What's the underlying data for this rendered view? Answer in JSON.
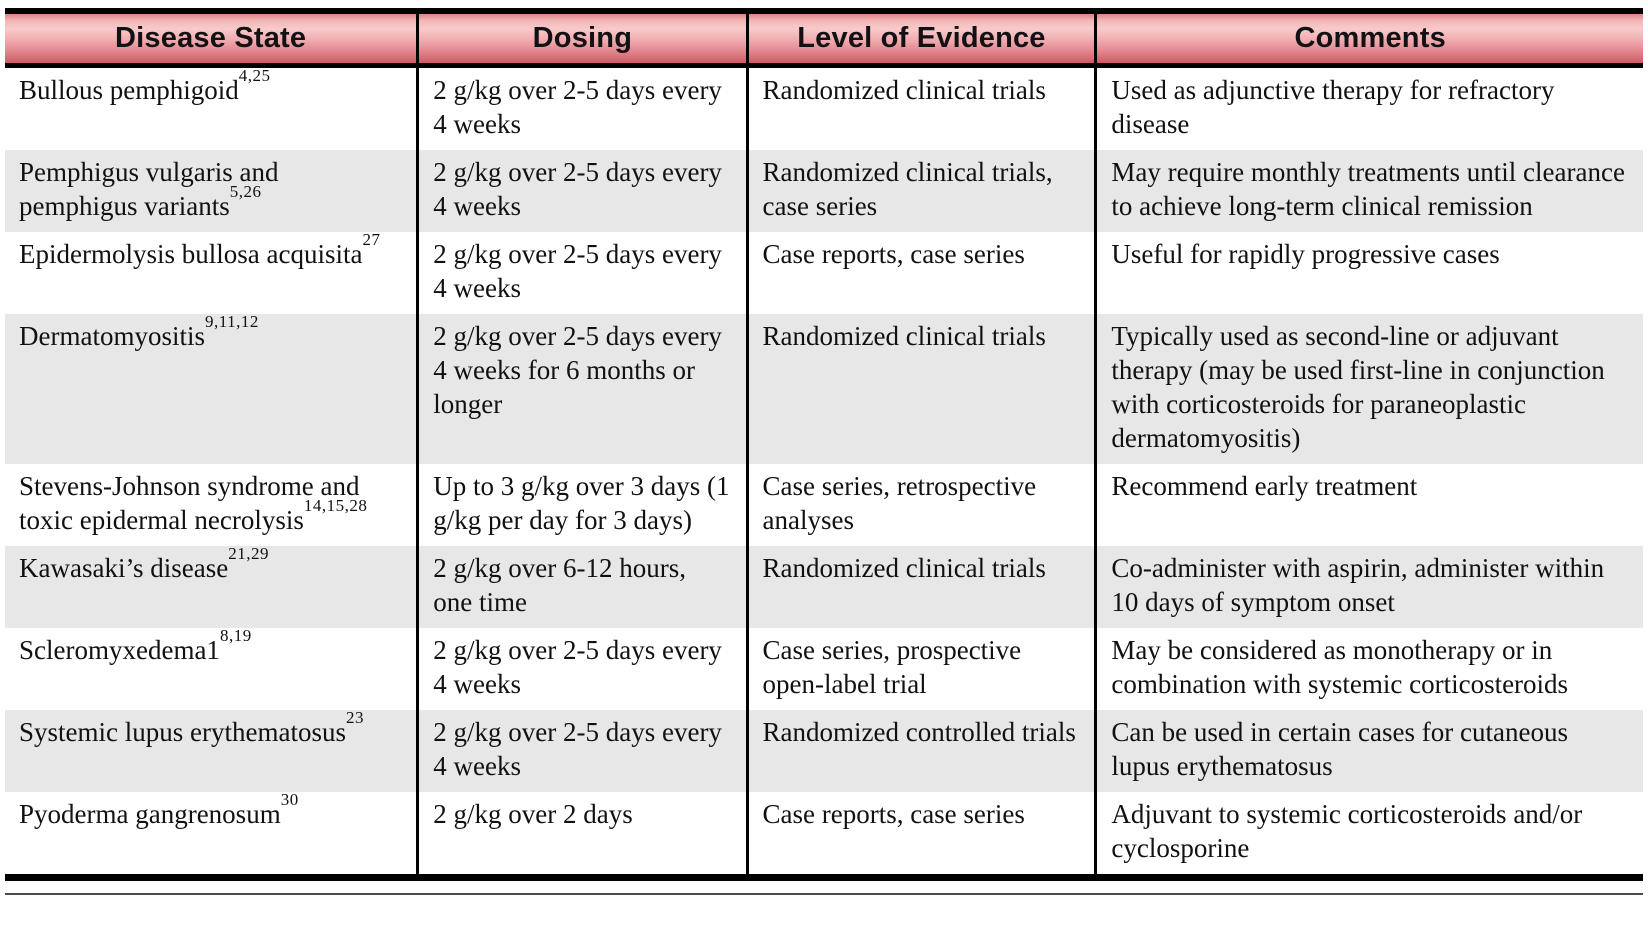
{
  "table": {
    "columns": [
      "Disease State",
      "Dosing",
      "Level of Evidence",
      "Comments"
    ],
    "rows": [
      {
        "disease": "Bullous pemphigoid",
        "disease_refs": "4,25",
        "dosing": "2 g/kg over 2-5 days every 4 weeks",
        "evidence": "Randomized clinical trials",
        "comments": "Used as adjunctive therapy for refractory disease"
      },
      {
        "disease": "Pemphigus vulgaris and pemphigus variants",
        "disease_refs": "5,26",
        "dosing": "2 g/kg over 2-5 days every 4 weeks",
        "evidence": "Randomized clinical trials, case series",
        "comments": "May require monthly treatments until clearance to achieve long-term clinical remission"
      },
      {
        "disease": "Epidermolysis bullosa acquisita",
        "disease_refs": "27",
        "dosing": "2 g/kg over 2-5 days every 4 weeks",
        "evidence": "Case reports, case series",
        "comments": "Useful for rapidly progressive cases"
      },
      {
        "disease": "Dermatomyositis",
        "disease_refs": "9,11,12",
        "dosing": "2 g/kg over 2-5 days every 4 weeks for 6 months or longer",
        "evidence": "Randomized clinical trials",
        "comments": "Typically used as second-line or adjuvant therapy (may be used first-line in conjunction with corticosteroids for paraneoplastic dermatomyositis)"
      },
      {
        "disease": "Stevens-Johnson syndrome and toxic epidermal necrolysis",
        "disease_refs": "14,15,28",
        "dosing": "Up to 3 g/kg over 3 days (1 g/kg per day for 3 days)",
        "evidence": "Case series, retrospective analyses",
        "comments": "Recommend early treatment"
      },
      {
        "disease": "Kawasaki’s disease",
        "disease_refs": "21,29",
        "dosing": "2 g/kg over 6-12 hours, one time",
        "evidence": "Randomized clinical trials",
        "comments": "Co-administer with aspirin, administer within 10 days of symptom onset"
      },
      {
        "disease": "Scleromyxedema1",
        "disease_refs": "8,19",
        "dosing": "2 g/kg over 2-5 days every 4 weeks",
        "evidence": "Case series, prospective open-label trial",
        "comments": "May be considered as monotherapy or in combination with systemic corticosteroids"
      },
      {
        "disease": "Systemic lupus erythematosus",
        "disease_refs": "23",
        "dosing": "2 g/kg over 2-5 days every 4 weeks",
        "evidence": "Randomized controlled trials",
        "comments": "Can be used in certain cases for cutaneous lupus erythematosus"
      },
      {
        "disease": "Pyoderma gangrenosum",
        "disease_refs": "30",
        "dosing": "2 g/kg over 2 days",
        "evidence": "Case reports, case series",
        "comments": "Adjuvant to systemic corticosteroids and/or cyclosporine"
      }
    ]
  },
  "colors": {
    "header_gradient_top": "#dd848a",
    "header_gradient_light": "#f8caca",
    "header_gradient_bottom": "#cd5a64",
    "row_stripe": "#e7e7e7",
    "border": "#000000",
    "text": "#111111"
  }
}
